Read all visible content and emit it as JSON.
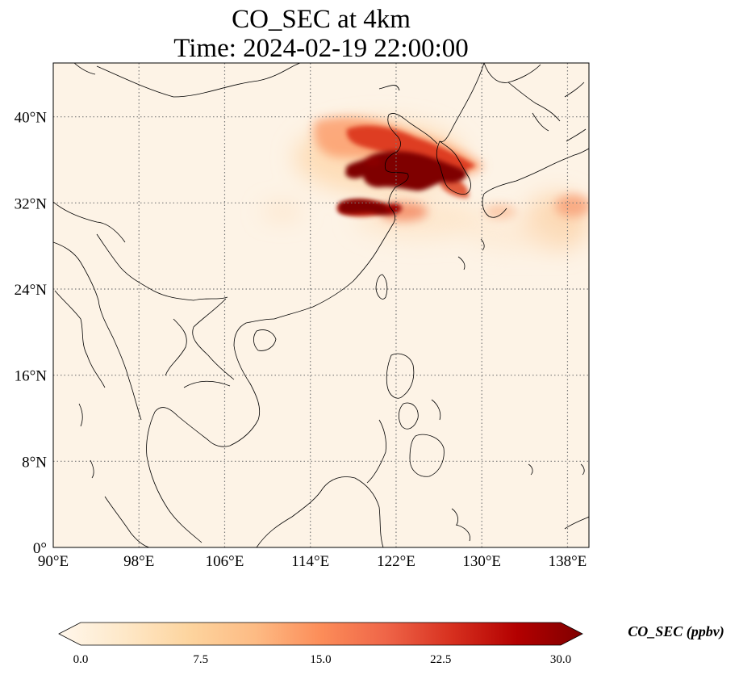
{
  "title": {
    "line1": "CO_SEC at 4km",
    "line2": "Time: 2024-02-19 22:00:00"
  },
  "map": {
    "lon_range": [
      90,
      140
    ],
    "lat_range": [
      0,
      45
    ],
    "gridlines": true,
    "gridline_style": "dotted",
    "lon_ticks": [
      "90°E",
      "98°E",
      "106°E",
      "114°E",
      "122°E",
      "130°E",
      "138°E"
    ],
    "lat_ticks": [
      "0°",
      "8°N",
      "16°N",
      "24°N",
      "32°N",
      "40°N"
    ],
    "lon_tick_values": [
      90,
      98,
      106,
      114,
      122,
      130,
      138
    ],
    "lat_tick_values": [
      0,
      8,
      16,
      24,
      32,
      40
    ],
    "field_peak_region": "Northern China, Bohai Sea, Yellow Sea, Korean Peninsula",
    "background_color": "#fdf3e6",
    "high_color": "#7f0000"
  },
  "colorbar": {
    "label": "CO_SEC (ppbv)",
    "min": 0.0,
    "max": 30.0,
    "tick_labels": [
      "0.0",
      "7.5",
      "15.0",
      "22.5",
      "30.0"
    ],
    "tick_values": [
      0,
      7.5,
      15,
      22.5,
      30
    ],
    "extend": "both",
    "colormap": [
      "#fff7ec",
      "#fee8c8",
      "#fdd49e",
      "#fdbb84",
      "#fc8d59",
      "#ef6548",
      "#d7301f",
      "#b30000",
      "#7f0000"
    ]
  }
}
